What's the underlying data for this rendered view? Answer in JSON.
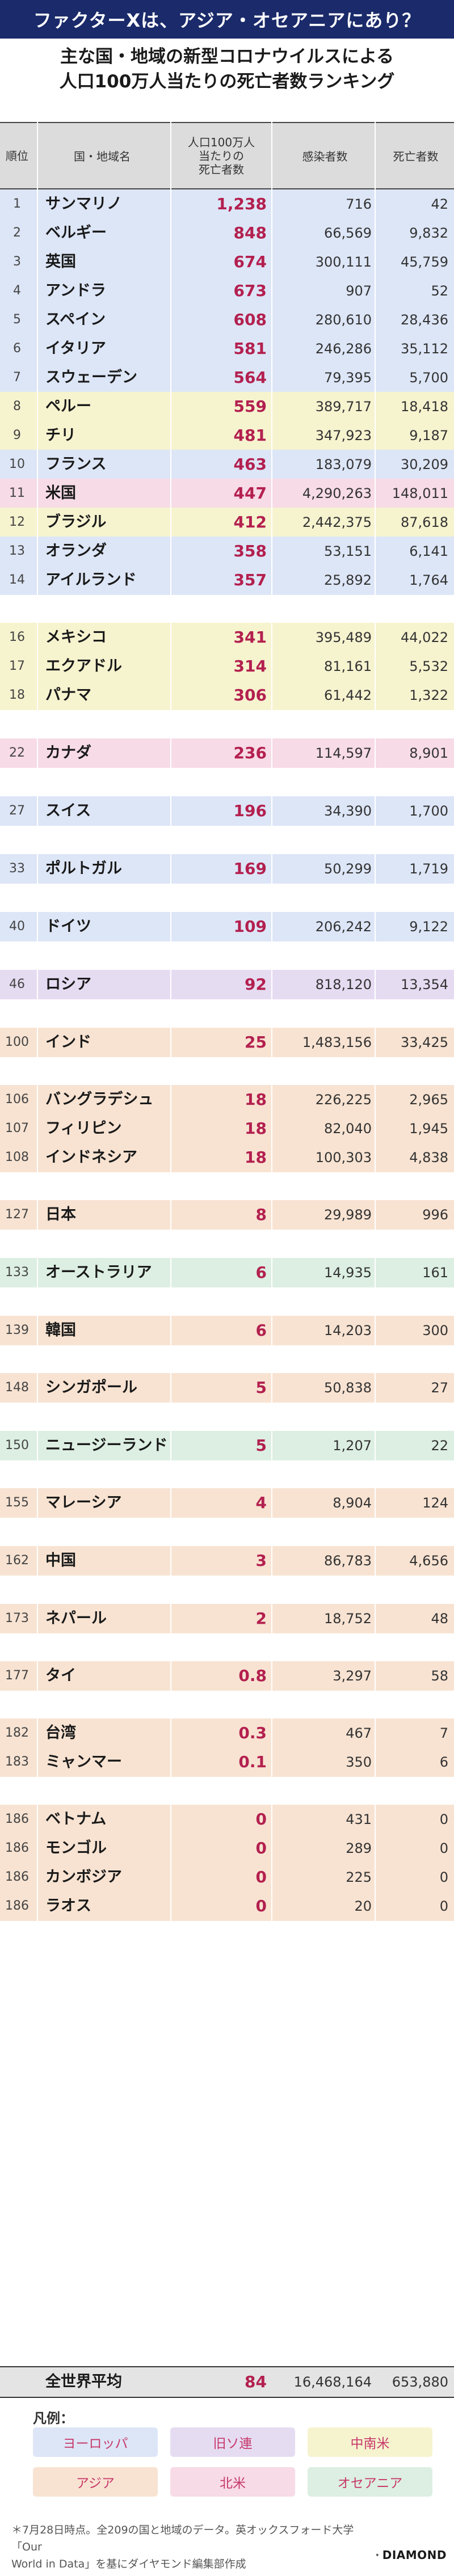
{
  "title": "ファクターXは、アジア・オセアニアにあり？",
  "subtitle_lines": [
    "主な国・地域の新型コロナウイルスによる",
    "人口100万人当たりの死亡者数ランキング"
  ],
  "header": {
    "rank": "順位",
    "name": "国・地域名",
    "rate_lines": [
      "人口100万人",
      "当たりの",
      "死亡者数"
    ],
    "cases": "感染者数",
    "deaths": "死亡者数"
  },
  "colors": {
    "title_bg": "#1a2a6a",
    "rate_text": "#b3204f",
    "europe": "#dde6f7",
    "ussr": "#e6dcf2",
    "latin_america": "#f6f3cf",
    "asia": "#f8e3d2",
    "north_america": "#f7dbe6",
    "oceania": "#dcefe2",
    "world": "#e4e4e4"
  },
  "chart_data": {
    "type": "table",
    "columns": [
      "順位",
      "国・地域名",
      "人口100万人当たりの死亡者数",
      "感染者数",
      "死亡者数"
    ],
    "rows": [
      {
        "rank": "1",
        "name": "サンマリノ",
        "rate": "1,238",
        "cases": "716",
        "deaths": "42",
        "region": "europe"
      },
      {
        "rank": "2",
        "name": "ベルギー",
        "rate": "848",
        "cases": "66,569",
        "deaths": "9,832",
        "region": "europe"
      },
      {
        "rank": "3",
        "name": "英国",
        "rate": "674",
        "cases": "300,111",
        "deaths": "45,759",
        "region": "europe"
      },
      {
        "rank": "4",
        "name": "アンドラ",
        "rate": "673",
        "cases": "907",
        "deaths": "52",
        "region": "europe"
      },
      {
        "rank": "5",
        "name": "スペイン",
        "rate": "608",
        "cases": "280,610",
        "deaths": "28,436",
        "region": "europe"
      },
      {
        "rank": "6",
        "name": "イタリア",
        "rate": "581",
        "cases": "246,286",
        "deaths": "35,112",
        "region": "europe"
      },
      {
        "rank": "7",
        "name": "スウェーデン",
        "rate": "564",
        "cases": "79,395",
        "deaths": "5,700",
        "region": "europe"
      },
      {
        "rank": "8",
        "name": "ペルー",
        "rate": "559",
        "cases": "389,717",
        "deaths": "18,418",
        "region": "latin_america"
      },
      {
        "rank": "9",
        "name": "チリ",
        "rate": "481",
        "cases": "347,923",
        "deaths": "9,187",
        "region": "latin_america"
      },
      {
        "rank": "10",
        "name": "フランス",
        "rate": "463",
        "cases": "183,079",
        "deaths": "30,209",
        "region": "europe"
      },
      {
        "rank": "11",
        "name": "米国",
        "rate": "447",
        "cases": "4,290,263",
        "deaths": "148,011",
        "region": "north_america"
      },
      {
        "rank": "12",
        "name": "ブラジル",
        "rate": "412",
        "cases": "2,442,375",
        "deaths": "87,618",
        "region": "latin_america"
      },
      {
        "rank": "13",
        "name": "オランダ",
        "rate": "358",
        "cases": "53,151",
        "deaths": "6,141",
        "region": "europe"
      },
      {
        "rank": "14",
        "name": "アイルランド",
        "rate": "357",
        "cases": "25,892",
        "deaths": "1,764",
        "region": "europe"
      },
      {
        "rank": "16",
        "name": "メキシコ",
        "rate": "341",
        "cases": "395,489",
        "deaths": "44,022",
        "region": "latin_america"
      },
      {
        "rank": "17",
        "name": "エクアドル",
        "rate": "314",
        "cases": "81,161",
        "deaths": "5,532",
        "region": "latin_america"
      },
      {
        "rank": "18",
        "name": "パナマ",
        "rate": "306",
        "cases": "61,442",
        "deaths": "1,322",
        "region": "latin_america"
      },
      {
        "rank": "22",
        "name": "カナダ",
        "rate": "236",
        "cases": "114,597",
        "deaths": "8,901",
        "region": "north_america"
      },
      {
        "rank": "27",
        "name": "スイス",
        "rate": "196",
        "cases": "34,390",
        "deaths": "1,700",
        "region": "europe"
      },
      {
        "rank": "33",
        "name": "ポルトガル",
        "rate": "169",
        "cases": "50,299",
        "deaths": "1,719",
        "region": "europe"
      },
      {
        "rank": "40",
        "name": "ドイツ",
        "rate": "109",
        "cases": "206,242",
        "deaths": "9,122",
        "region": "europe"
      },
      {
        "rank": "46",
        "name": "ロシア",
        "rate": "92",
        "cases": "818,120",
        "deaths": "13,354",
        "region": "ussr"
      },
      {
        "rank": "100",
        "name": "インド",
        "rate": "25",
        "cases": "1,483,156",
        "deaths": "33,425",
        "region": "asia"
      },
      {
        "rank": "106",
        "name": "バングラデシュ",
        "rate": "18",
        "cases": "226,225",
        "deaths": "2,965",
        "region": "asia"
      },
      {
        "rank": "107",
        "name": "フィリピン",
        "rate": "18",
        "cases": "82,040",
        "deaths": "1,945",
        "region": "asia"
      },
      {
        "rank": "108",
        "name": "インドネシア",
        "rate": "18",
        "cases": "100,303",
        "deaths": "4,838",
        "region": "asia"
      },
      {
        "rank": "127",
        "name": "日本",
        "rate": "8",
        "cases": "29,989",
        "deaths": "996",
        "region": "asia"
      },
      {
        "rank": "133",
        "name": "オーストラリア",
        "rate": "6",
        "cases": "14,935",
        "deaths": "161",
        "region": "oceania"
      },
      {
        "rank": "139",
        "name": "韓国",
        "rate": "6",
        "cases": "14,203",
        "deaths": "300",
        "region": "asia"
      },
      {
        "rank": "148",
        "name": "シンガポール",
        "rate": "5",
        "cases": "50,838",
        "deaths": "27",
        "region": "asia"
      },
      {
        "rank": "150",
        "name": "ニュージーランド",
        "rate": "5",
        "cases": "1,207",
        "deaths": "22",
        "region": "oceania"
      },
      {
        "rank": "155",
        "name": "マレーシア",
        "rate": "4",
        "cases": "8,904",
        "deaths": "124",
        "region": "asia"
      },
      {
        "rank": "162",
        "name": "中国",
        "rate": "3",
        "cases": "86,783",
        "deaths": "4,656",
        "region": "asia"
      },
      {
        "rank": "173",
        "name": "ネパール",
        "rate": "2",
        "cases": "18,752",
        "deaths": "48",
        "region": "asia"
      },
      {
        "rank": "177",
        "name": "タイ",
        "rate": "0.8",
        "cases": "3,297",
        "deaths": "58",
        "region": "asia"
      },
      {
        "rank": "182",
        "name": "台湾",
        "rate": "0.3",
        "cases": "467",
        "deaths": "7",
        "region": "asia"
      },
      {
        "rank": "183",
        "name": "ミャンマー",
        "rate": "0.1",
        "cases": "350",
        "deaths": "6",
        "region": "asia"
      },
      {
        "rank": "186",
        "name": "ベトナム",
        "rate": "0",
        "cases": "431",
        "deaths": "0",
        "region": "asia"
      },
      {
        "rank": "186",
        "name": "モンゴル",
        "rate": "0",
        "cases": "289",
        "deaths": "0",
        "region": "asia"
      },
      {
        "rank": "186",
        "name": "カンボジア",
        "rate": "0",
        "cases": "225",
        "deaths": "0",
        "region": "asia"
      },
      {
        "rank": "186",
        "name": "ラオス",
        "rate": "0",
        "cases": "20",
        "deaths": "0",
        "region": "asia"
      }
    ],
    "world_average": {
      "name": "全世界平均",
      "rate": "84",
      "cases": "16,468,164",
      "deaths": "653,880"
    }
  },
  "legend": {
    "title": "凡例：",
    "items": [
      {
        "label": "ヨーロッパ",
        "region": "europe"
      },
      {
        "label": "旧ソ連",
        "region": "ussr"
      },
      {
        "label": "中南米",
        "region": "latin_america"
      },
      {
        "label": "アジア",
        "region": "asia"
      },
      {
        "label": "北米",
        "region": "north_america"
      },
      {
        "label": "オセアニア",
        "region": "oceania"
      }
    ]
  },
  "footnote_lines": [
    "＊7月28日時点。全209の国と地域のデータ。英オックスフォード大学「Our",
    "World in Data」を基にダイヤモンド編集部作成"
  ],
  "logo_text": "DIAMOND"
}
